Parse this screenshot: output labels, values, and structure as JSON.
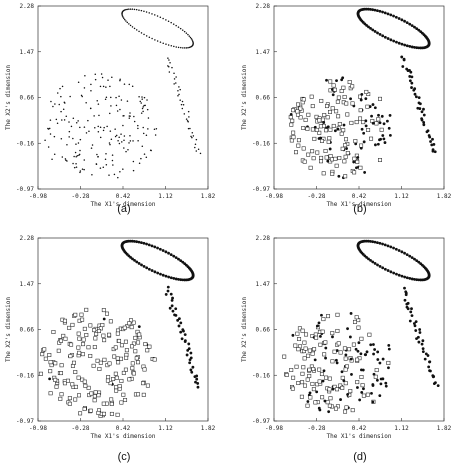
{
  "figure": {
    "panels": [
      {
        "id": "a",
        "caption": "(a)",
        "xlabel": "The X1's dimension",
        "ylabel": "The X2's dimension",
        "xticks": [
          "-0.98",
          "-0.28",
          "0.42",
          "1.12",
          "1.82"
        ],
        "yticks": [
          "2.28",
          "1.47",
          "0.66",
          "-0.16",
          "-0.97"
        ],
        "clusters": [
          "dot",
          "dot",
          "dot"
        ]
      },
      {
        "id": "b",
        "caption": "(b)",
        "xlabel": "The X1's dimension",
        "ylabel": "The X2's dimension",
        "xticks": [
          "-0.98",
          "-0.28",
          "0.42",
          "1.12",
          "1.82"
        ],
        "yticks": [
          "2.28",
          "1.47",
          "0.66",
          "-0.16",
          "-0.97"
        ],
        "clusters": [
          "filled",
          "filled",
          "square"
        ]
      },
      {
        "id": "c",
        "caption": "(c)",
        "xlabel": "The X1's dimension",
        "ylabel": "The X2's dimension",
        "xticks": [
          "-0.98",
          "-0.28",
          "0.42",
          "1.12",
          "1.82"
        ],
        "yticks": [
          "2.28",
          "1.47",
          "0.66",
          "-0.16",
          "-0.97"
        ],
        "clusters": [
          "filled",
          "filled",
          "square"
        ]
      },
      {
        "id": "d",
        "caption": "(d)",
        "xlabel": "The X1's dimension",
        "ylabel": "The X2's dimension",
        "xticks": [
          "-0.98",
          "-0.28",
          "0.42",
          "1.12",
          "1.82"
        ],
        "yticks": [
          "2.28",
          "1.47",
          "0.66",
          "-0.16",
          "-0.97"
        ],
        "clusters": [
          "filled",
          "filled",
          "square"
        ]
      }
    ]
  },
  "chart_data": [
    {
      "type": "scatter",
      "panel": "(a)",
      "xlabel": "The X1's dimension",
      "ylabel": "The X2's dimension",
      "xlim": [
        -0.98,
        1.82
      ],
      "ylim": [
        -0.97,
        2.28
      ],
      "series": [
        {
          "shape": "ellipse",
          "marker": "dot",
          "center": [
            0.99,
            1.88
          ],
          "radii": [
            0.65,
            0.2
          ],
          "angle_deg": -27,
          "count": 80
        },
        {
          "shape": "line",
          "marker": "dot",
          "from": [
            1.14,
            1.38
          ],
          "to": [
            1.68,
            -0.35
          ],
          "count": 40
        },
        {
          "shape": "disk",
          "marker": "dot",
          "center": [
            0.02,
            0.1
          ],
          "radii": [
            0.95,
            0.98
          ],
          "count": 200
        }
      ]
    },
    {
      "type": "scatter",
      "panel": "(b)",
      "xlabel": "The X1's dimension",
      "ylabel": "The X2's dimension",
      "xlim": [
        -0.98,
        1.82
      ],
      "ylim": [
        -0.97,
        2.28
      ],
      "series": [
        {
          "shape": "ellipse",
          "marker": "filled",
          "center": [
            0.99,
            1.88
          ],
          "radii": [
            0.65,
            0.2
          ],
          "angle_deg": -27,
          "count": 80
        },
        {
          "shape": "line",
          "marker": "filled",
          "from": [
            1.14,
            1.38
          ],
          "to": [
            1.68,
            -0.35
          ],
          "count": 40
        },
        {
          "shape": "disk",
          "marker": "square+filled",
          "center": [
            0.12,
            0.12
          ],
          "radii": [
            0.85,
            0.9
          ],
          "count": 200,
          "filled_fraction": 0.45
        }
      ]
    },
    {
      "type": "scatter",
      "panel": "(c)",
      "xlabel": "The X1's dimension",
      "ylabel": "The X2's dimension",
      "xlim": [
        -0.98,
        1.82
      ],
      "ylim": [
        -0.97,
        2.28
      ],
      "series": [
        {
          "shape": "ellipse",
          "marker": "filled",
          "center": [
            0.99,
            1.88
          ],
          "radii": [
            0.65,
            0.2
          ],
          "angle_deg": -27,
          "count": 80
        },
        {
          "shape": "line",
          "marker": "filled",
          "from": [
            1.14,
            1.38
          ],
          "to": [
            1.68,
            -0.35
          ],
          "count": 40
        },
        {
          "shape": "disk",
          "marker": "square",
          "center": [
            0.0,
            0.05
          ],
          "radii": [
            0.95,
            0.98
          ],
          "count": 200,
          "filled_fraction": 0.05
        }
      ]
    },
    {
      "type": "scatter",
      "panel": "(d)",
      "xlabel": "The X1's dimension",
      "ylabel": "The X2's dimension",
      "xlim": [
        -0.98,
        1.82
      ],
      "ylim": [
        -0.97,
        2.28
      ],
      "series": [
        {
          "shape": "ellipse",
          "marker": "filled",
          "center": [
            0.99,
            1.88
          ],
          "radii": [
            0.65,
            0.2
          ],
          "angle_deg": -27,
          "count": 80
        },
        {
          "shape": "line",
          "marker": "filled",
          "from": [
            1.14,
            1.38
          ],
          "to": [
            1.68,
            -0.35
          ],
          "count": 40
        },
        {
          "shape": "disk",
          "marker": "square+filled",
          "center": [
            0.08,
            0.06
          ],
          "radii": [
            0.9,
            0.92
          ],
          "count": 200,
          "filled_fraction": 0.5
        }
      ]
    }
  ]
}
